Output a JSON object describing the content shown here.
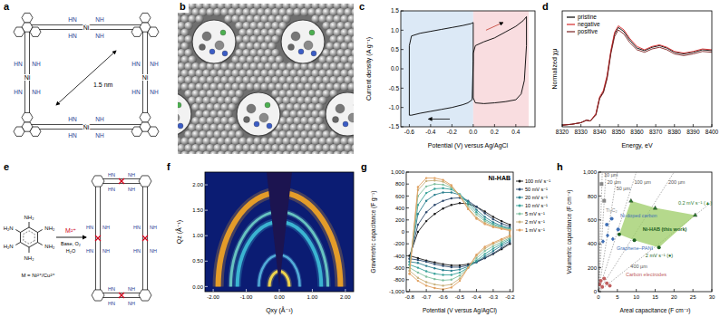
{
  "panels": [
    {
      "label": "a",
      "distance": "1.5 nm",
      "metal": "Ni",
      "amines": [
        "NH",
        "HN"
      ]
    },
    {
      "label": "b"
    },
    {
      "label": "e",
      "substituents": [
        "NH₂",
        "H₂N"
      ],
      "reagent": "M²⁺",
      "conditions": [
        "Base, O₂",
        "H₂O"
      ],
      "metal_note": "M = Ni²⁺/Cu²⁺",
      "amines": [
        "NH",
        "HN"
      ]
    }
  ],
  "chart_data": [
    {
      "panel_label": "c",
      "type": "line",
      "xlabel": "Potential (V) versus Ag/AgCl",
      "ylabel": "Current density (A g⁻¹)",
      "xlim": [
        -0.68,
        0.58
      ],
      "xticks": [
        -0.6,
        -0.4,
        -0.2,
        {
          "value": 0,
          "label": "0.0"
        },
        0.2,
        0.4
      ],
      "ylim": [
        -1.5,
        1.5
      ],
      "yticks": [
        -1.5,
        {
          "value": -1,
          "label": "-1.0"
        },
        -0.5,
        {
          "value": 0,
          "label": "0.0"
        },
        0.5,
        {
          "value": 1,
          "label": "1.0"
        },
        1.5
      ],
      "regions": [
        {
          "from": -0.68,
          "to": 0,
          "color": "#dce9f6"
        },
        {
          "from": 0,
          "to": 0.52,
          "color": "#f9dde0"
        }
      ],
      "series": [
        {
          "color": "#000000",
          "x": [
            -0.6,
            -0.6,
            -0.58,
            -0.5,
            -0.4,
            -0.3,
            -0.2,
            -0.1,
            -0.02,
            0,
            0,
            -0.01,
            -0.05,
            -0.1,
            -0.2,
            -0.3,
            -0.4,
            -0.5,
            -0.58,
            -0.6
          ],
          "values": [
            -1.2,
            0.6,
            0.85,
            0.92,
            0.97,
            1.02,
            1.07,
            1.12,
            1.17,
            1.2,
            0.2,
            -0.8,
            -0.88,
            -0.93,
            -1.0,
            -1.05,
            -1.1,
            -1.15,
            -1.2,
            -1.2
          ]
        },
        {
          "color": "#000000",
          "x": [
            0,
            0,
            0.02,
            0.1,
            0.2,
            0.3,
            0.4,
            0.47,
            0.5,
            0.5,
            0.48,
            0.45,
            0.4,
            0.3,
            0.2,
            0.1,
            0.02,
            0
          ],
          "values": [
            -0.75,
            0.4,
            0.6,
            0.7,
            0.8,
            0.95,
            1.1,
            1.25,
            1.35,
            0.6,
            -0.3,
            -0.65,
            -0.8,
            -0.85,
            -0.88,
            -0.9,
            -0.88,
            -0.75
          ]
        }
      ]
    },
    {
      "panel_label": "d",
      "type": "line",
      "xlabel": "Energy, eV",
      "ylabel": "Normalized χμ",
      "tick_labels": "x",
      "legend": "upper left",
      "xlim": [
        8320,
        8400
      ],
      "xticks": [
        8320,
        8330,
        8340,
        8350,
        8360,
        8370,
        8380,
        8390,
        8400
      ],
      "ylim": [
        0,
        1.4
      ],
      "x": [
        8320,
        8325,
        8330,
        8333,
        8335,
        8338,
        8340,
        8342,
        8344,
        8346,
        8348,
        8350,
        8353,
        8356,
        8360,
        8364,
        8368,
        8372,
        8376,
        8380,
        8385,
        8390,
        8395,
        8400
      ],
      "series": [
        {
          "name": "pristine",
          "color": "#000000",
          "values": [
            0.02,
            0.03,
            0.05,
            0.08,
            0.07,
            0.15,
            0.35,
            0.42,
            0.6,
            0.9,
            1.12,
            1.2,
            1.15,
            1.05,
            0.95,
            0.92,
            0.96,
            0.98,
            0.95,
            0.9,
            0.88,
            0.9,
            0.93,
            0.92
          ]
        },
        {
          "name": "negative",
          "color": "#d62728",
          "values": [
            0.02,
            0.03,
            0.05,
            0.08,
            0.07,
            0.16,
            0.36,
            0.44,
            0.62,
            0.92,
            1.14,
            1.22,
            1.17,
            1.07,
            0.97,
            0.93,
            0.97,
            0.99,
            0.96,
            0.91,
            0.89,
            0.91,
            0.94,
            0.93
          ]
        },
        {
          "name": "positive",
          "color": "#7a1f1f",
          "values": [
            0.02,
            0.03,
            0.05,
            0.08,
            0.07,
            0.14,
            0.34,
            0.41,
            0.58,
            0.88,
            1.09,
            1.17,
            1.12,
            1.02,
            0.93,
            0.9,
            0.94,
            0.96,
            0.93,
            0.88,
            0.86,
            0.88,
            0.91,
            0.9
          ]
        }
      ]
    },
    {
      "panel_label": "f",
      "type": "image",
      "xlabel": "Qxy (Å⁻¹)",
      "ylabel": "Qz (Å⁻¹)",
      "xlim": [
        -2.25,
        2.25
      ],
      "xticks": [
        {
          "value": -2,
          "label": "-2.00"
        },
        {
          "value": -1,
          "label": "-1.00"
        },
        {
          "value": 0,
          "label": "0.00"
        },
        {
          "value": 1,
          "label": "1.00"
        },
        {
          "value": 2,
          "label": "2.00"
        }
      ],
      "ylim": [
        -0.1,
        2.25
      ],
      "yticks": [
        {
          "value": 0,
          "label": "0.00"
        },
        {
          "value": 0.5,
          "label": "0.50"
        },
        {
          "value": 1,
          "label": "1.00"
        },
        {
          "value": 1.5,
          "label": "1.50"
        },
        {
          "value": 2,
          "label": "2.00"
        }
      ],
      "rings": [
        0.3,
        0.62,
        1.27,
        1.47,
        1.85
      ],
      "colors": [
        "#ffe14a",
        "#59b8e0",
        "#3fc0d8",
        "#6fd0c8",
        "#f5a623"
      ]
    },
    {
      "panel_label": "g",
      "type": "line",
      "title": "Ni-HAB",
      "xlabel": "Potential (V versus Ag/AgCl)",
      "ylabel": "Gravimetric capacitance (F g⁻¹)",
      "marker": "circle",
      "legend": "right",
      "xlim": [
        -0.82,
        -0.18
      ],
      "xticks": [
        -0.8,
        -0.7,
        -0.6,
        -0.5,
        -0.4,
        -0.3,
        -0.2
      ],
      "ylim": [
        -1000,
        1000
      ],
      "yticks": [
        {
          "value": -1000,
          "label": "-1,000"
        },
        -800,
        -600,
        -400,
        -200,
        0,
        200,
        400,
        600,
        800,
        {
          "value": 1000,
          "label": "1,000"
        }
      ],
      "x": [
        -0.8,
        -0.75,
        -0.7,
        -0.65,
        -0.6,
        -0.55,
        -0.5,
        -0.45,
        -0.4,
        -0.35,
        -0.3,
        -0.25,
        -0.2,
        -0.2,
        -0.25,
        -0.3,
        -0.35,
        -0.4,
        -0.45,
        -0.5,
        -0.55,
        -0.6,
        -0.65,
        -0.7,
        -0.75,
        -0.8
      ],
      "series": [
        {
          "name": "100 mV s⁻¹",
          "color": "#1a1a1a",
          "values": [
            -400,
            0,
            180,
            300,
            390,
            450,
            480,
            470,
            420,
            340,
            250,
            180,
            120,
            -200,
            -290,
            -370,
            -440,
            -500,
            -540,
            -560,
            -560,
            -540,
            -510,
            -480,
            -440,
            -400
          ]
        },
        {
          "name": "50 mV s⁻¹",
          "color": "#2f4b6e",
          "values": [
            -450,
            120,
            330,
            450,
            520,
            560,
            570,
            520,
            420,
            310,
            210,
            140,
            90,
            -180,
            -270,
            -360,
            -440,
            -510,
            -560,
            -590,
            -590,
            -570,
            -540,
            -500,
            -470,
            -450
          ]
        },
        {
          "name": "20 mV s⁻¹",
          "color": "#2a7f8f",
          "values": [
            -500,
            300,
            520,
            620,
            660,
            660,
            620,
            510,
            370,
            250,
            160,
            100,
            60,
            -150,
            -230,
            -320,
            -410,
            -500,
            -580,
            -630,
            -650,
            -640,
            -610,
            -570,
            -520,
            -500
          ]
        },
        {
          "name": "10 mV s⁻¹",
          "color": "#3aa39a",
          "values": [
            -550,
            450,
            650,
            720,
            730,
            710,
            630,
            480,
            330,
            210,
            130,
            80,
            50,
            -120,
            -200,
            -280,
            -370,
            -480,
            -600,
            -680,
            -720,
            -720,
            -700,
            -660,
            -600,
            -550
          ]
        },
        {
          "name": "5 mV s⁻¹",
          "color": "#7fbf9f",
          "values": [
            -600,
            600,
            760,
            800,
            790,
            740,
            620,
            440,
            290,
            180,
            110,
            70,
            40,
            -100,
            -170,
            -240,
            -320,
            -440,
            -600,
            -730,
            -800,
            -810,
            -790,
            -750,
            -680,
            -600
          ]
        },
        {
          "name": "2 mV s⁻¹",
          "color": "#c8b07a",
          "values": [
            -650,
            700,
            850,
            860,
            840,
            760,
            600,
            400,
            240,
            150,
            90,
            60,
            30,
            -80,
            -140,
            -200,
            -280,
            -400,
            -600,
            -780,
            -880,
            -900,
            -880,
            -840,
            -770,
            -650
          ]
        },
        {
          "name": "1 mV s⁻¹",
          "color": "#e0a060",
          "values": [
            -700,
            750,
            900,
            900,
            870,
            780,
            600,
            380,
            220,
            130,
            80,
            50,
            20,
            -60,
            -120,
            -180,
            -250,
            -380,
            -600,
            -820,
            -930,
            -960,
            -940,
            -900,
            -820,
            -700
          ]
        }
      ]
    },
    {
      "panel_label": "h",
      "type": "scatter",
      "xlabel": "Areal capacitance (F cm⁻²)",
      "ylabel": "Volumetric capacitance (F cm⁻³)",
      "xlim": [
        0,
        30
      ],
      "xticks": [
        0,
        5,
        10,
        15,
        20,
        25,
        30
      ],
      "ylim": [
        0,
        1000
      ],
      "yticks": [
        0,
        200,
        400,
        600,
        800,
        {
          "value": 1000,
          "label": "1,000"
        }
      ],
      "thickness_lines": [
        {
          "value": 10,
          "label": "10 µm"
        },
        {
          "value": 20,
          "label": "20 µm"
        },
        {
          "value": 50,
          "label": "50 µm"
        },
        {
          "value": 100,
          "label": "100 µm"
        },
        {
          "value": 200,
          "label": "200 µm"
        },
        {
          "value": 400,
          "label": "400 µm"
        }
      ],
      "annotations": [
        "Ni-HAB (this work)"
      ],
      "series": [
        {
          "name": "0.2 mV s⁻¹ (▲)",
          "color": "#2e7d32",
          "marker": "triangle",
          "x": [
            8.6,
            15,
            25.6
          ],
          "values": [
            760,
            700,
            640
          ]
        },
        {
          "name": "2 mV s⁻¹ (●)",
          "color": "#1b5e20",
          "marker": "circle",
          "x": [
            5.5,
            9.5,
            16
          ],
          "values": [
            480,
            430,
            370
          ]
        },
        {
          "name": "Ni-doped carbon",
          "color": "#3f6fb5",
          "marker": "circle",
          "x": [
            2.2,
            3.5,
            5.2
          ],
          "values": [
            560,
            610,
            520
          ]
        },
        {
          "name": "Graphene–PANI",
          "color": "#3f6fb5",
          "marker": "diamond",
          "x": [
            1.2,
            2.4,
            3.8
          ],
          "values": [
            420,
            470,
            440
          ]
        },
        {
          "name": "Ti₃C₂",
          "color": "#888888",
          "marker": "square",
          "x": [
            0.8,
            1.5
          ],
          "values": [
            900,
            760
          ]
        },
        {
          "name": "Carbon electrodes",
          "color": "#c06060",
          "marker": "circle",
          "x": [
            0.3,
            0.6,
            1,
            1.5,
            2.2,
            3
          ],
          "values": [
            60,
            90,
            40,
            110,
            70,
            50
          ]
        }
      ]
    }
  ]
}
